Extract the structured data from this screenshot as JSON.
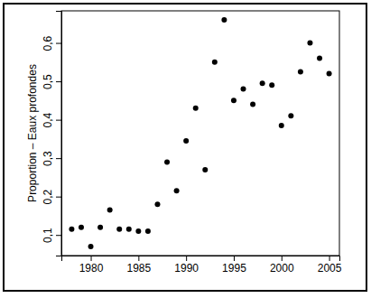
{
  "chart_data": {
    "type": "scatter",
    "y_label": "Proportion – Eaux profondes",
    "x": [
      1978,
      1979,
      1980,
      1981,
      1982,
      1983,
      1984,
      1985,
      1986,
      1987,
      1988,
      1989,
      1990,
      1991,
      1992,
      1993,
      1994,
      1995,
      1996,
      1997,
      1998,
      1999,
      2000,
      2001,
      2002,
      2003,
      2004,
      2005
    ],
    "values": [
      0.115,
      0.12,
      0.07,
      0.12,
      0.165,
      0.115,
      0.115,
      0.11,
      0.11,
      0.18,
      0.29,
      0.215,
      0.345,
      0.43,
      0.27,
      0.55,
      0.66,
      0.45,
      0.48,
      0.44,
      0.495,
      0.49,
      0.385,
      0.41,
      0.525,
      0.6,
      0.56,
      0.52
    ],
    "color": "#000000",
    "marker": "circle",
    "xlim": [
      1976.92,
      2006.08
    ],
    "ylim": [
      0.0464,
      0.6836
    ],
    "xticks": [
      1980,
      1985,
      1990,
      1995,
      2000,
      2005
    ],
    "yticks": [
      {
        "value": 0.1,
        "label": "0,1"
      },
      {
        "value": 0.2,
        "label": "0,2"
      },
      {
        "value": 0.3,
        "label": "0,3"
      },
      {
        "value": 0.4,
        "label": "0,4"
      },
      {
        "value": 0.5,
        "label": "0,5"
      },
      {
        "value": 0.6,
        "label": "0,6"
      }
    ],
    "grid": false
  }
}
